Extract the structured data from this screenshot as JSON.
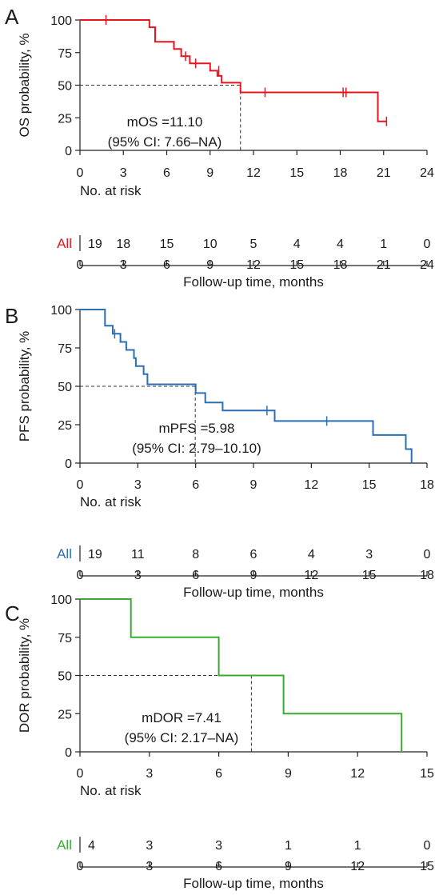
{
  "chart_data": [
    {
      "type": "line",
      "panel_label": "A",
      "ylabel": "OS probability, %",
      "xlabel": "Follow-up time, months",
      "ylim": [
        0,
        100
      ],
      "xlim": [
        0,
        24
      ],
      "xticks": [
        0,
        3,
        6,
        9,
        12,
        15,
        18,
        21,
        24
      ],
      "yticks": [
        0,
        25,
        50,
        75,
        100
      ],
      "series": [
        {
          "name": "All",
          "color": "#e8141e",
          "steps": [
            [
              0,
              100
            ],
            [
              4.8,
              100
            ],
            [
              4.8,
              94.4
            ],
            [
              5.2,
              94.4
            ],
            [
              5.2,
              83.3
            ],
            [
              6.5,
              83.3
            ],
            [
              6.5,
              77.8
            ],
            [
              7.0,
              77.8
            ],
            [
              7.0,
              72.2
            ],
            [
              7.6,
              72.2
            ],
            [
              7.6,
              66.7
            ],
            [
              9.0,
              66.7
            ],
            [
              9.0,
              61.1
            ],
            [
              9.5,
              61.1
            ],
            [
              9.5,
              57.1
            ],
            [
              9.8,
              57.1
            ],
            [
              9.8,
              51.9
            ],
            [
              11.1,
              51.9
            ],
            [
              11.1,
              44.5
            ],
            [
              20.6,
              44.5
            ],
            [
              20.6,
              22.2
            ],
            [
              21.2,
              22.2
            ]
          ],
          "censored": [
            [
              1.8,
              100
            ],
            [
              7.3,
              72.2
            ],
            [
              8.0,
              66.7
            ],
            [
              9.6,
              61.1
            ],
            [
              12.8,
              44.5
            ],
            [
              18.2,
              44.5
            ],
            [
              18.4,
              44.5
            ],
            [
              21.2,
              22.2
            ]
          ]
        }
      ],
      "median": {
        "x": 11.1,
        "y": 50,
        "label_line1": "mOS =11.10",
        "label_line2": "(95% CI: 7.66–NA)"
      },
      "risk_table": {
        "title": "No. at risk",
        "group": "All",
        "times": [
          0,
          3,
          6,
          9,
          12,
          15,
          18,
          21,
          24
        ],
        "counts": [
          "19",
          "18",
          "15",
          "10",
          "5",
          "4",
          "4",
          "1",
          "0"
        ]
      }
    },
    {
      "type": "line",
      "panel_label": "B",
      "ylabel": "PFS probability, %",
      "xlabel": "Follow-up time, months",
      "ylim": [
        0,
        100
      ],
      "xlim": [
        0,
        18
      ],
      "xticks": [
        0,
        3,
        6,
        9,
        12,
        15,
        18
      ],
      "yticks": [
        0,
        25,
        50,
        75,
        100
      ],
      "series": [
        {
          "name": "All",
          "color": "#2a6fb5",
          "steps": [
            [
              0,
              100
            ],
            [
              1.3,
              100
            ],
            [
              1.3,
              89.5
            ],
            [
              1.7,
              89.5
            ],
            [
              1.7,
              84.2
            ],
            [
              2.1,
              84.2
            ],
            [
              2.1,
              78.9
            ],
            [
              2.4,
              78.9
            ],
            [
              2.4,
              73.7
            ],
            [
              2.8,
              73.7
            ],
            [
              2.8,
              68.4
            ],
            [
              2.9,
              68.4
            ],
            [
              2.9,
              63.2
            ],
            [
              3.3,
              63.2
            ],
            [
              3.3,
              57.9
            ],
            [
              3.5,
              57.9
            ],
            [
              3.5,
              51.3
            ],
            [
              6.0,
              51.3
            ],
            [
              6.0,
              45.6
            ],
            [
              6.5,
              45.6
            ],
            [
              6.5,
              39.5
            ],
            [
              7.4,
              39.5
            ],
            [
              7.4,
              34.2
            ],
            [
              10.1,
              34.2
            ],
            [
              10.1,
              27.4
            ],
            [
              15.2,
              27.4
            ],
            [
              15.2,
              18.3
            ],
            [
              16.9,
              18.3
            ],
            [
              16.9,
              9.1
            ],
            [
              17.2,
              9.1
            ],
            [
              17.2,
              0
            ]
          ],
          "censored": [
            [
              1.8,
              84.2
            ],
            [
              9.7,
              34.2
            ],
            [
              12.8,
              27.4
            ]
          ]
        }
      ],
      "median": {
        "x": 5.98,
        "y": 50,
        "label_line1": "mPFS =5.98",
        "label_line2": "(95% CI: 2.79–10.10)"
      },
      "risk_table": {
        "title": "No. at risk",
        "group": "All",
        "times": [
          0,
          3,
          6,
          9,
          12,
          15,
          18
        ],
        "counts": [
          "19",
          "11",
          "8",
          "6",
          "4",
          "3",
          "0"
        ]
      }
    },
    {
      "type": "line",
      "panel_label": "C",
      "ylabel": "DOR probability, %",
      "xlabel": "Follow-up time, months",
      "ylim": [
        0,
        100
      ],
      "xlim": [
        0,
        15
      ],
      "xticks": [
        0,
        3,
        6,
        9,
        12,
        15
      ],
      "yticks": [
        0,
        25,
        50,
        75,
        100
      ],
      "series": [
        {
          "name": "All",
          "color": "#3aaa35",
          "steps": [
            [
              0,
              100
            ],
            [
              2.2,
              100
            ],
            [
              2.2,
              75
            ],
            [
              6.0,
              75
            ],
            [
              6.0,
              50
            ],
            [
              8.8,
              50
            ],
            [
              8.8,
              25
            ],
            [
              13.9,
              25
            ],
            [
              13.9,
              0
            ]
          ],
          "censored": []
        }
      ],
      "median": {
        "x": 7.41,
        "y": 50,
        "label_line1": "mDOR =7.41",
        "label_line2": "(95% CI: 2.17–NA)"
      },
      "risk_table": {
        "title": "No. at risk",
        "group": "All",
        "times": [
          0,
          3,
          6,
          9,
          12,
          15
        ],
        "counts": [
          "4",
          "3",
          "3",
          "1",
          "1",
          "0"
        ]
      }
    }
  ]
}
